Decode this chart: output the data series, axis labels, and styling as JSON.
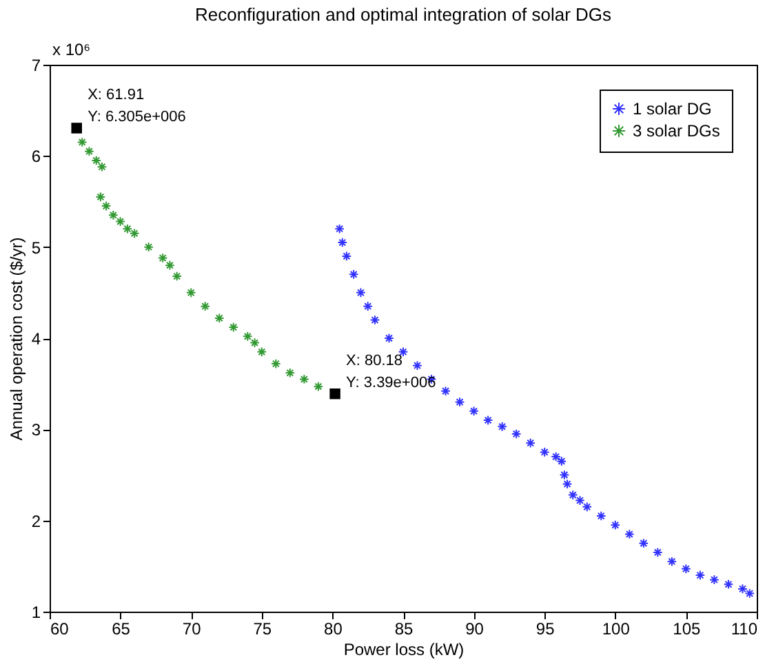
{
  "chart_data": {
    "type": "scatter",
    "title": "Reconfiguration and optimal integration of solar DGs",
    "xlabel": "Power loss (kW)",
    "ylabel": "Annual operation cost ($/yr)",
    "xlim": [
      60,
      110
    ],
    "xticks": [
      60,
      65,
      70,
      75,
      80,
      85,
      90,
      95,
      100,
      105,
      110
    ],
    "ylim": [
      1,
      7
    ],
    "yticks": [
      1,
      2,
      3,
      4,
      5,
      6,
      7
    ],
    "grid": false,
    "legend": "top right",
    "marker": "cross",
    "series": [
      {
        "name": "1 solar DG",
        "color": "#0000ff",
        "x": [
          80.5,
          80.7,
          81,
          81.5,
          82,
          82.5,
          83,
          84,
          85,
          86,
          87,
          88,
          89,
          90,
          91,
          92,
          93,
          94,
          95,
          95.8,
          96.2,
          96.4,
          96.6,
          97,
          97.5,
          98,
          99,
          100,
          101,
          102,
          103,
          104,
          105,
          106,
          107,
          108,
          109,
          109.5
        ],
        "values": [
          5.2,
          5.05,
          4.9,
          4.7,
          4.5,
          4.35,
          4.2,
          4.0,
          3.85,
          3.7,
          3.55,
          3.42,
          3.3,
          3.2,
          3.1,
          3.03,
          2.95,
          2.85,
          2.75,
          2.7,
          2.65,
          2.5,
          2.4,
          2.28,
          2.22,
          2.15,
          2.05,
          1.95,
          1.85,
          1.75,
          1.65,
          1.55,
          1.47,
          1.4,
          1.35,
          1.3,
          1.25,
          1.2
        ]
      },
      {
        "name": "3 solar DGs",
        "color": "#008000",
        "x": [
          61.9,
          62.3,
          62.8,
          63.3,
          63.7,
          63.6,
          64,
          64.5,
          65,
          65.5,
          66,
          67,
          68,
          68.5,
          69,
          70,
          71,
          72,
          73,
          74,
          74.5,
          75,
          76,
          77,
          78,
          79
        ],
        "values": [
          6.3,
          6.15,
          6.05,
          5.95,
          5.88,
          5.55,
          5.45,
          5.35,
          5.28,
          5.2,
          5.15,
          5.0,
          4.88,
          4.8,
          4.68,
          4.5,
          4.35,
          4.22,
          4.12,
          4.02,
          3.95,
          3.85,
          3.72,
          3.62,
          3.55,
          3.47
        ]
      }
    ],
    "annotations": [
      "x 10⁶",
      {
        "text": "X: 61.91\nY: 6.305e+006",
        "x": 61.91,
        "y": 6.305
      },
      {
        "text": "X: 80.18\nY: 3.39e+006",
        "x": 80.18,
        "y": 3.39
      }
    ]
  }
}
